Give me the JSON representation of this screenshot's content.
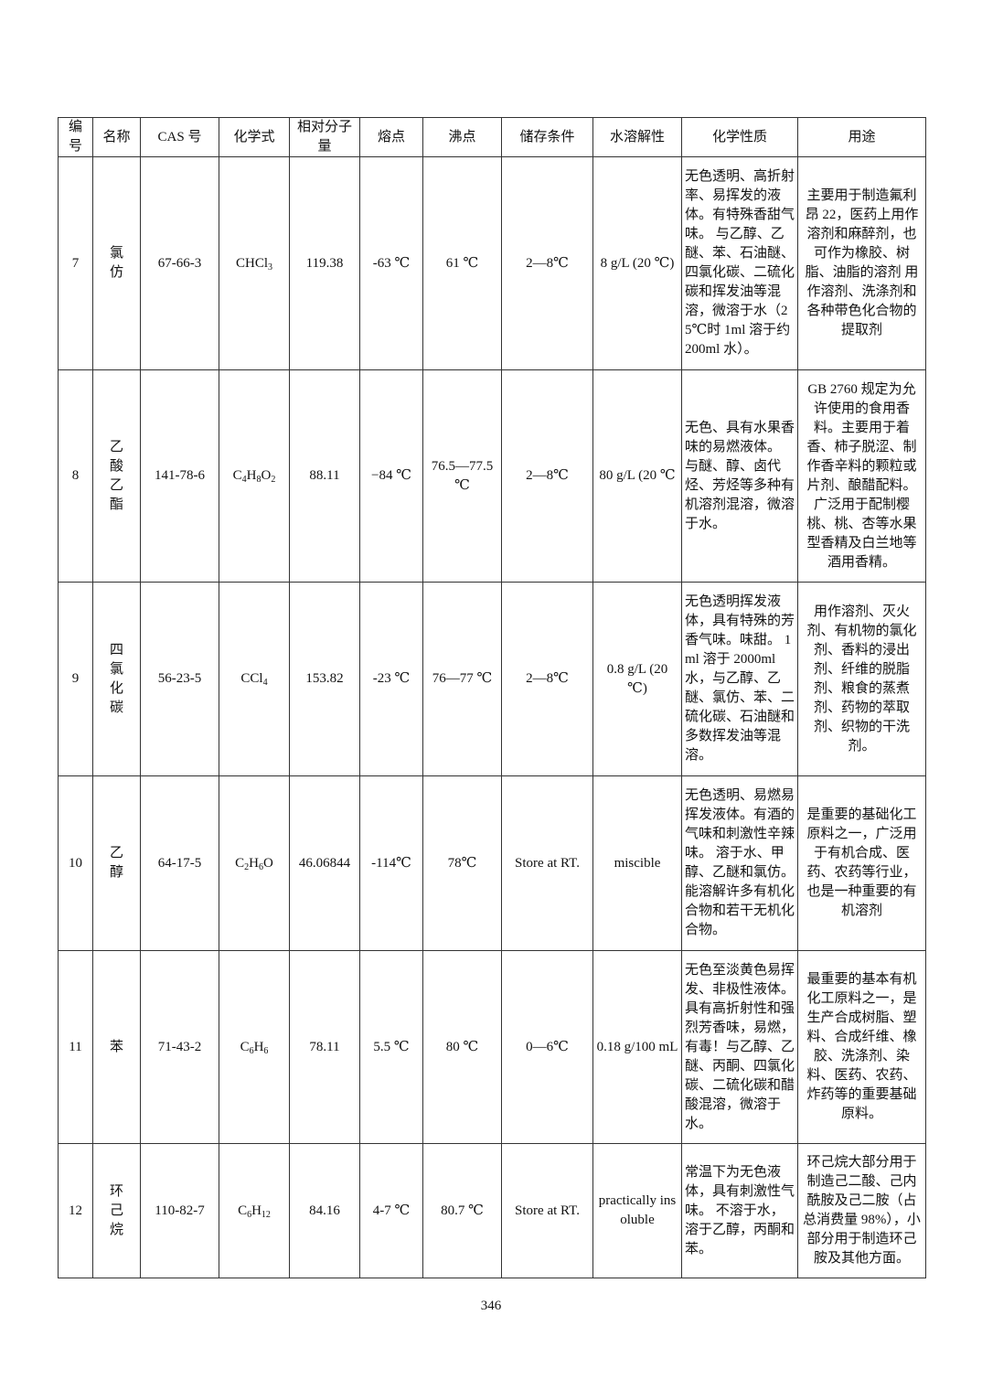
{
  "table": {
    "headers": [
      "编号",
      "名称",
      "CAS 号",
      "化学式",
      "相对分子量",
      "熔点",
      "沸点",
      "储存条件",
      "水溶解性",
      "化学性质",
      "用途"
    ],
    "rows": [
      {
        "no": "7",
        "name": "氯仿",
        "cas": "67-66-3",
        "formula": [
          {
            "t": "CHCl"
          },
          {
            "t": "3",
            "sub": true
          }
        ],
        "mw": "119.38",
        "mp": "-63 ℃",
        "bp": "61 ℃",
        "storage": "2—8℃",
        "solubility": "8 g/L (20 ℃)",
        "properties": "无色透明、高折射率、易挥发的液体。有特殊香甜气味。 与乙醇、乙醚、苯、石油醚、四氯化碳、二硫化碳和挥发油等混溶，微溶于水（25℃时 1ml 溶于约 200ml 水）。",
        "uses": "主要用于制造氟利昂 22，医药上用作溶剂和麻醉剂，也可作为橡胶、树脂、油脂的溶剂 用作溶剂、洗涤剂和各种带色化合物的提取剂"
      },
      {
        "no": "8",
        "name": "乙酸乙酯",
        "cas": "141-78-6",
        "formula": [
          {
            "t": "C"
          },
          {
            "t": "4",
            "sub": true
          },
          {
            "t": "H"
          },
          {
            "t": "8",
            "sub": true
          },
          {
            "t": "O"
          },
          {
            "t": "2",
            "sub": true
          }
        ],
        "mw": "88.11",
        "mp": "−84 ℃",
        "bp": "76.5—77.5 ℃",
        "storage": "2—8℃",
        "solubility": "80 g/L (20 ℃",
        "properties": "无色、具有水果香味的易燃液体。 与醚、醇、卤代烃、芳烃等多种有机溶剂混溶，微溶于水。",
        "uses": "GB 2760 规定为允许使用的食用香料。主要用于着香、柿子脱涩、制作香辛料的颗粒或片剂、酿醋配料。广泛用于配制樱桃、桃、杏等水果型香精及白兰地等酒用香精。"
      },
      {
        "no": "9",
        "name": "四氯化碳",
        "cas": "56-23-5",
        "formula": [
          {
            "t": "CCl"
          },
          {
            "t": "4",
            "sub": true
          }
        ],
        "mw": "153.82",
        "mp": "-23 ℃",
        "bp": "76—77 ℃",
        "storage": "2—8℃",
        "solubility": "0.8 g/L (20 ℃)",
        "properties": "无色透明挥发液体，具有特殊的芳香气味。味甜。 1ml 溶于 2000ml 水，与乙醇、乙醚、氯仿、苯、二硫化碳、石油醚和多数挥发油等混溶。",
        "uses": "用作溶剂、灭火剂、有机物的氯化剂、香料的浸出剂、纤维的脱脂剂、粮食的蒸煮剂、药物的萃取剂、织物的干洗剂。"
      },
      {
        "no": "10",
        "name": "乙醇",
        "cas": "64-17-5",
        "formula": [
          {
            "t": "C"
          },
          {
            "t": "2",
            "sub": true
          },
          {
            "t": "H"
          },
          {
            "t": "6",
            "sub": true
          },
          {
            "t": "O"
          }
        ],
        "mw": "46.06844",
        "mp": "-114℃",
        "bp": "78℃",
        "storage": "Store at RT.",
        "solubility": "miscible",
        "properties": "无色透明、易燃易挥发液体。有酒的气味和刺激性辛辣味。 溶于水、甲醇、乙醚和氯仿。能溶解许多有机化合物和若干无机化合物。",
        "uses": "是重要的基础化工原料之一，广泛用于有机合成、医药、农药等行业，也是一种重要的有机溶剂"
      },
      {
        "no": "11",
        "name": "苯",
        "cas": "71-43-2",
        "formula": [
          {
            "t": "C"
          },
          {
            "t": "6",
            "sub": true
          },
          {
            "t": "H"
          },
          {
            "t": "6",
            "sub": true
          }
        ],
        "mw": "78.11",
        "mp": "5.5 ℃",
        "bp": "80 ℃",
        "storage": "0—6℃",
        "solubility": "0.18 g/100 mL",
        "properties": "无色至淡黄色易挥发、非极性液体。具有高折射性和强烈芳香味，易燃，有毒！与乙醇、乙醚、丙酮、四氯化碳、二硫化碳和醋酸混溶，微溶于水。",
        "uses": "最重要的基本有机化工原料之一，是生产合成树脂、塑料、合成纤维、橡胶、洗涤剂、染料、医药、农药、炸药等的重要基础原料。"
      },
      {
        "no": "12",
        "name": "环己烷",
        "cas": "110-82-7",
        "formula": [
          {
            "t": "C"
          },
          {
            "t": "6",
            "sub": true
          },
          {
            "t": "H"
          },
          {
            "t": "12",
            "sub": true
          }
        ],
        "mw": "84.16",
        "mp": "4-7 ℃",
        "bp": "80.7 ℃",
        "storage": "Store at RT.",
        "solubility": "practically insoluble",
        "properties": "常温下为无色液体，具有刺激性气味。 不溶于水，溶于乙醇，丙酮和苯。",
        "uses": "环己烷大部分用于制造己二酸、己内酰胺及己二胺（占总消费量 98%），小部分用于制造环己胺及其他方面。"
      }
    ]
  },
  "page_number": "346"
}
